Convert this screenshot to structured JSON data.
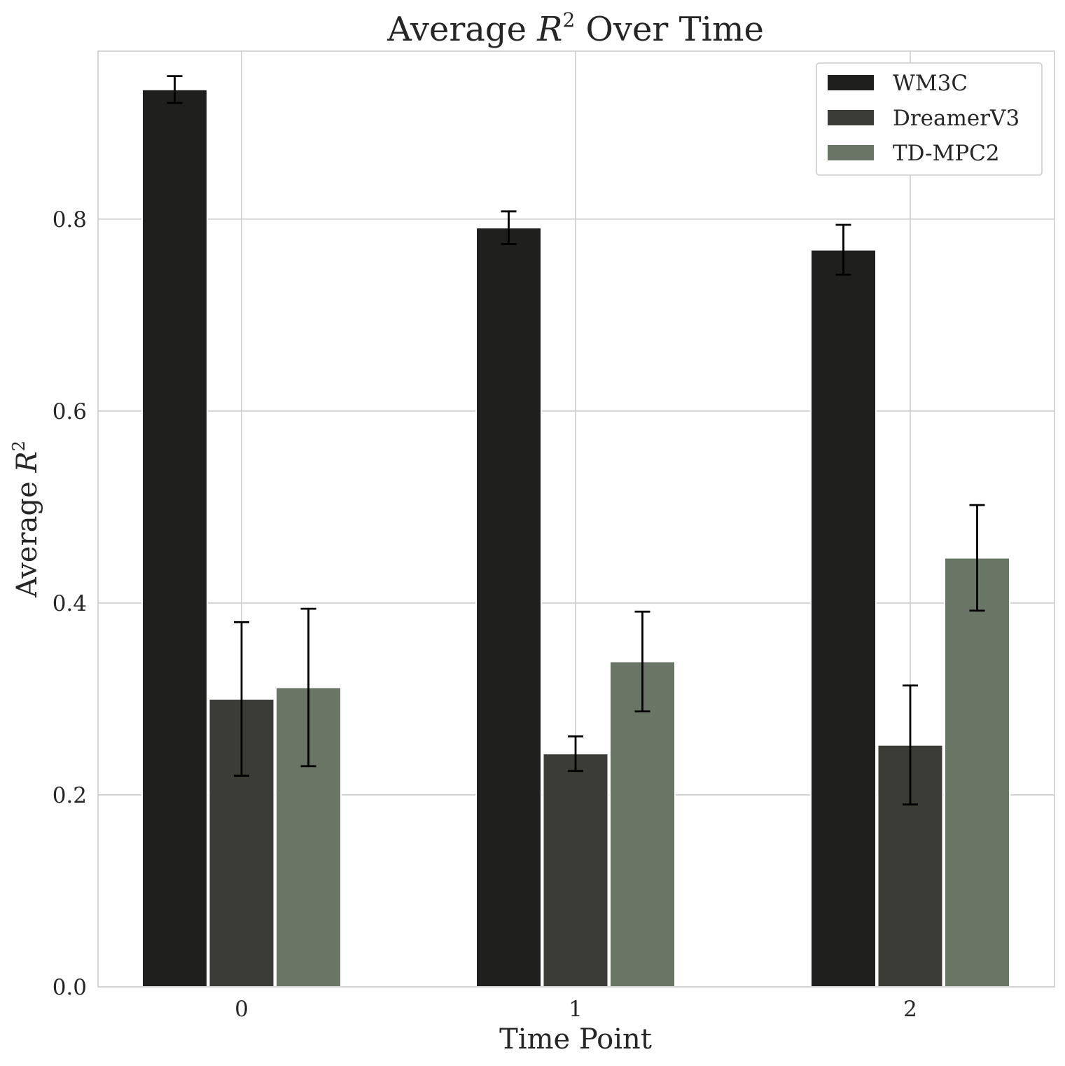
{
  "chart_data": {
    "type": "bar",
    "title": {
      "prefix": "Average ",
      "math_symbol": "R",
      "superscript": "2",
      "suffix": " Over Time"
    },
    "xlabel": "Time Point",
    "ylabel": {
      "prefix": "Average ",
      "math_symbol": "R",
      "superscript": "2"
    },
    "categories": [
      "0",
      "1",
      "2"
    ],
    "ylim": [
      0,
      0.975
    ],
    "yticks": [
      0.0,
      0.2,
      0.4,
      0.6,
      0.8
    ],
    "ytick_labels": [
      "0.0",
      "0.2",
      "0.4",
      "0.6",
      "0.8"
    ],
    "grid": true,
    "legend_position": "top-right",
    "series": [
      {
        "name": "WM3C",
        "color": "#1f201e",
        "values": [
          0.935,
          0.791,
          0.768
        ],
        "errors": [
          0.014,
          0.017,
          0.026
        ]
      },
      {
        "name": "DreamerV3",
        "color": "#3b3c36",
        "values": [
          0.3,
          0.243,
          0.252
        ],
        "errors": [
          0.08,
          0.018,
          0.062
        ]
      },
      {
        "name": "TD-MPC2",
        "color": "#697565",
        "values": [
          0.312,
          0.339,
          0.447
        ],
        "errors": [
          0.082,
          0.052,
          0.055
        ]
      }
    ]
  }
}
